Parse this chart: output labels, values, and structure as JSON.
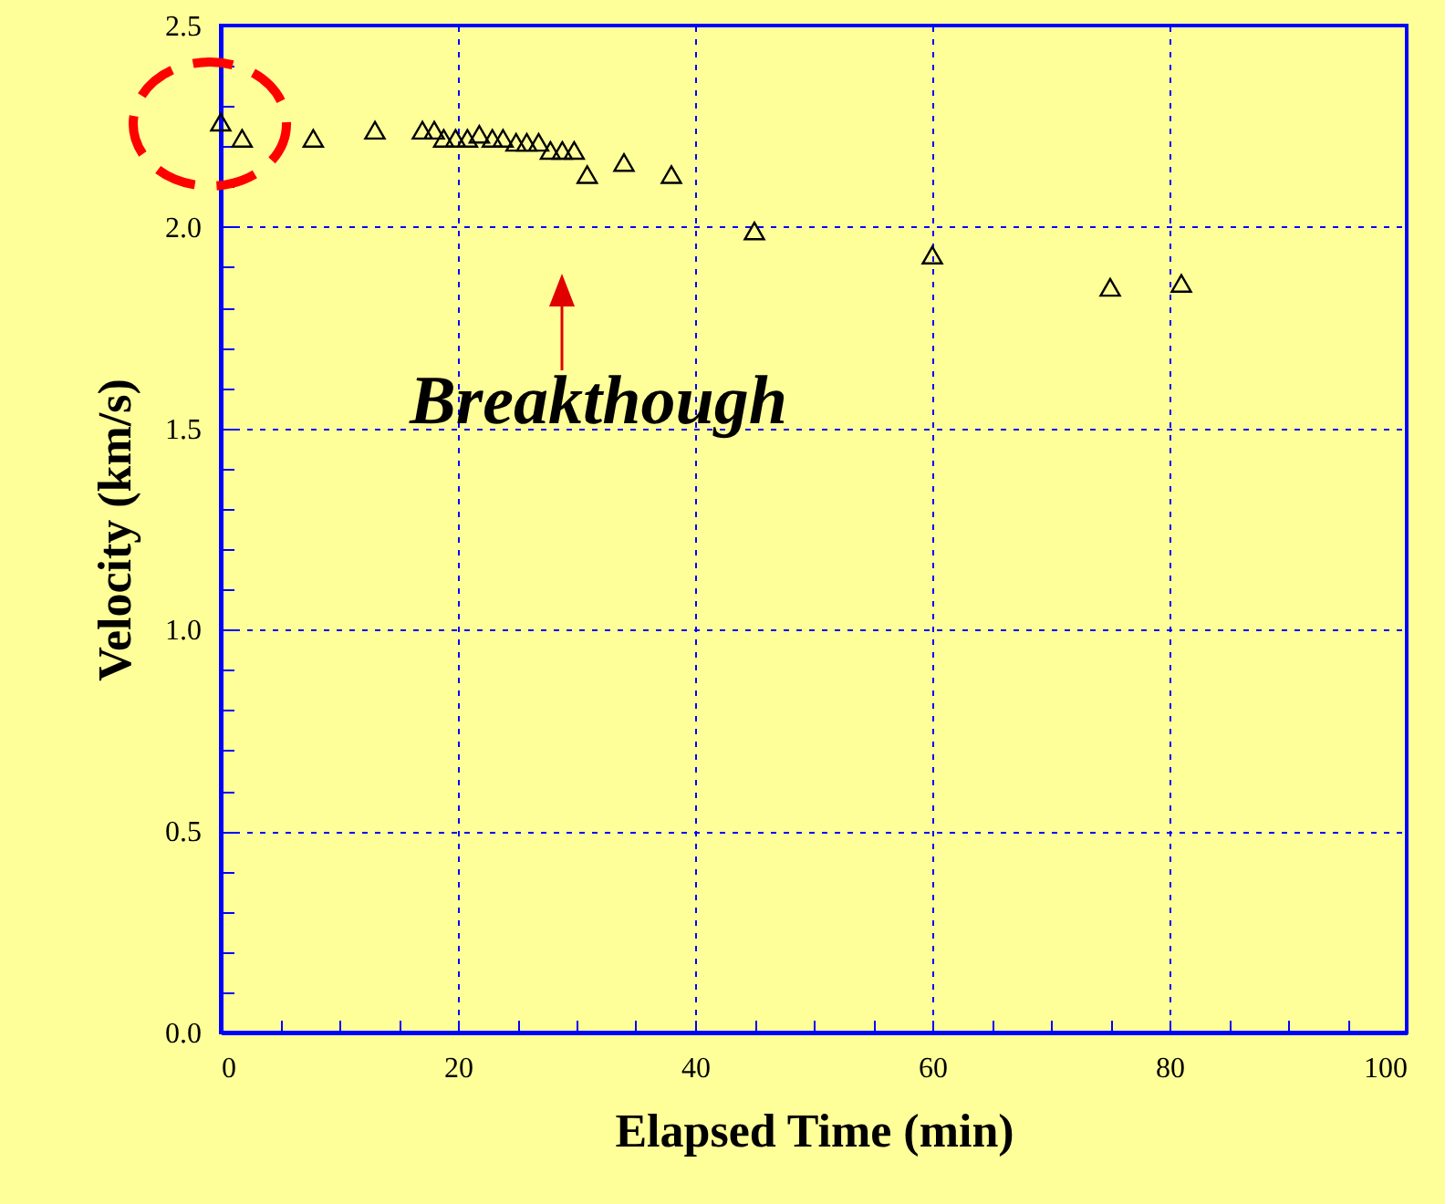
{
  "chart_data": {
    "type": "scatter",
    "xlabel": "Elapsed Time (min)",
    "ylabel": "Velocity (km/s)",
    "x": [
      0,
      1.8,
      7.8,
      13,
      17,
      18,
      18.8,
      19.8,
      20.8,
      21.8,
      22.9,
      23.8,
      24.9,
      25.8,
      26.8,
      27.8,
      28.8,
      29.8,
      30.9,
      34,
      38,
      45,
      60,
      75,
      81
    ],
    "series": [
      {
        "color": "#000000",
        "values": [
          2.26,
          2.22,
          2.22,
          2.24,
          2.24,
          2.24,
          2.22,
          2.22,
          2.22,
          2.23,
          2.22,
          2.22,
          2.21,
          2.21,
          2.21,
          2.19,
          2.19,
          2.19,
          2.13,
          2.16,
          2.13,
          1.99,
          1.93,
          1.85,
          1.86
        ]
      }
    ],
    "marker": "triangle",
    "grid": true,
    "xlim": [
      0,
      100
    ],
    "xticks": [
      0,
      {
        "value": 5,
        "label": null
      },
      {
        "value": 10,
        "label": null
      },
      {
        "value": 15,
        "label": null
      },
      20,
      {
        "value": 25,
        "label": null
      },
      {
        "value": 30,
        "label": null
      },
      {
        "value": 35,
        "label": null
      },
      40,
      {
        "value": 45,
        "label": null
      },
      {
        "value": 50,
        "label": null
      },
      {
        "value": 55,
        "label": null
      },
      60,
      {
        "value": 65,
        "label": null
      },
      {
        "value": 70,
        "label": null
      },
      {
        "value": 75,
        "label": null
      },
      80,
      {
        "value": 85,
        "label": null
      },
      {
        "value": 90,
        "label": null
      },
      {
        "value": 95,
        "label": null
      },
      100
    ],
    "ylim": [
      0,
      2.5
    ],
    "yticks": [
      {
        "value": 0,
        "label": "0.0"
      },
      {
        "value": 0.1,
        "label": null
      },
      {
        "value": 0.2,
        "label": null
      },
      {
        "value": 0.3,
        "label": null
      },
      {
        "value": 0.4,
        "label": null
      },
      0.5,
      {
        "value": 0.6,
        "label": null
      },
      {
        "value": 0.7,
        "label": null
      },
      {
        "value": 0.8,
        "label": null
      },
      {
        "value": 0.9,
        "label": null
      },
      {
        "value": 1,
        "label": "1.0"
      },
      {
        "value": 1.1,
        "label": null
      },
      {
        "value": 1.2,
        "label": null
      },
      {
        "value": 1.3,
        "label": null
      },
      {
        "value": 1.4,
        "label": null
      },
      1.5,
      {
        "value": 1.6,
        "label": null
      },
      {
        "value": 1.7,
        "label": null
      },
      {
        "value": 1.8,
        "label": null
      },
      {
        "value": 1.9,
        "label": null
      },
      {
        "value": 2,
        "label": "2.0"
      },
      {
        "value": 2.1,
        "label": null
      },
      {
        "value": 2.2,
        "label": null
      },
      {
        "value": 2.3,
        "label": null
      },
      {
        "value": 2.4,
        "label": null
      },
      2.5
    ],
    "annotations": [
      "Breakthough"
    ]
  }
}
